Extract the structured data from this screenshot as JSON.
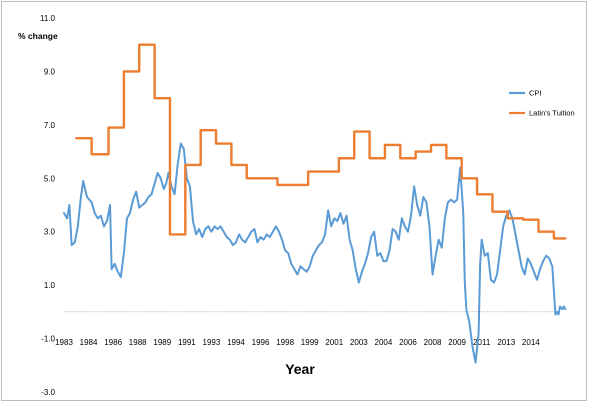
{
  "chart_data": {
    "type": "line",
    "title": "",
    "xlabel": "Year",
    "ylabel": "% change",
    "xlim": [
      1983.0,
      2015.3
    ],
    "ylim": [
      -3.0,
      11.0
    ],
    "y_ticks": [
      "11.0",
      "9.0",
      "7.0",
      "5.0",
      "3.0",
      "1.0",
      "-1.0",
      "-3.0"
    ],
    "y_tick_values": [
      11,
      9,
      7,
      5,
      3,
      1,
      -1,
      -3
    ],
    "x_ticks": [
      "1983",
      "1984",
      "1986",
      "1988",
      "1989",
      "1991",
      "1993",
      "1994",
      "1996",
      "1998",
      "1999",
      "2001",
      "2003",
      "2004",
      "2006",
      "2008",
      "2009",
      "2011",
      "2013",
      "2014"
    ],
    "x_tick_values": [
      1983,
      1984.6,
      1986.2,
      1987.8,
      1989.4,
      1991.0,
      1992.6,
      1994.2,
      1995.8,
      1997.4,
      1999.0,
      2000.6,
      2002.2,
      2003.8,
      2005.4,
      2007.0,
      2008.6,
      2010.2,
      2011.8,
      2013.4
    ],
    "zero_line": true,
    "legend_position": "right",
    "series": [
      {
        "name": "CPI",
        "color": "#5b9bd5",
        "points": [
          [
            1983.0,
            3.7
          ],
          [
            1983.2,
            3.5
          ],
          [
            1983.35,
            4.0
          ],
          [
            1983.5,
            2.5
          ],
          [
            1983.7,
            2.6
          ],
          [
            1983.9,
            3.2
          ],
          [
            1984.1,
            4.3
          ],
          [
            1984.25,
            4.9
          ],
          [
            1984.5,
            4.3
          ],
          [
            1984.8,
            4.1
          ],
          [
            1985.0,
            3.7
          ],
          [
            1985.2,
            3.5
          ],
          [
            1985.4,
            3.6
          ],
          [
            1985.6,
            3.2
          ],
          [
            1985.8,
            3.4
          ],
          [
            1986.0,
            4.0
          ],
          [
            1986.1,
            1.6
          ],
          [
            1986.3,
            1.8
          ],
          [
            1986.5,
            1.5
          ],
          [
            1986.7,
            1.3
          ],
          [
            1986.9,
            2.2
          ],
          [
            1987.1,
            3.5
          ],
          [
            1987.3,
            3.7
          ],
          [
            1987.5,
            4.2
          ],
          [
            1987.7,
            4.5
          ],
          [
            1987.9,
            3.9
          ],
          [
            1988.1,
            4.0
          ],
          [
            1988.3,
            4.1
          ],
          [
            1988.5,
            4.3
          ],
          [
            1988.7,
            4.4
          ],
          [
            1988.9,
            4.8
          ],
          [
            1989.1,
            5.2
          ],
          [
            1989.3,
            5.0
          ],
          [
            1989.5,
            4.6
          ],
          [
            1989.65,
            4.8
          ],
          [
            1989.8,
            5.2
          ],
          [
            1990.0,
            4.7
          ],
          [
            1990.2,
            4.4
          ],
          [
            1990.4,
            5.5
          ],
          [
            1990.6,
            6.3
          ],
          [
            1990.8,
            6.1
          ],
          [
            1991.0,
            5.0
          ],
          [
            1991.2,
            4.7
          ],
          [
            1991.4,
            3.4
          ],
          [
            1991.6,
            2.9
          ],
          [
            1991.8,
            3.1
          ],
          [
            1992.0,
            2.8
          ],
          [
            1992.2,
            3.1
          ],
          [
            1992.4,
            3.2
          ],
          [
            1992.6,
            3.0
          ],
          [
            1992.8,
            3.2
          ],
          [
            1993.0,
            3.1
          ],
          [
            1993.2,
            3.2
          ],
          [
            1993.4,
            3.0
          ],
          [
            1993.6,
            2.8
          ],
          [
            1993.8,
            2.7
          ],
          [
            1994.0,
            2.5
          ],
          [
            1994.2,
            2.6
          ],
          [
            1994.4,
            2.9
          ],
          [
            1994.6,
            2.7
          ],
          [
            1994.8,
            2.6
          ],
          [
            1995.0,
            2.8
          ],
          [
            1995.2,
            3.0
          ],
          [
            1995.4,
            3.1
          ],
          [
            1995.6,
            2.6
          ],
          [
            1995.8,
            2.8
          ],
          [
            1996.0,
            2.7
          ],
          [
            1996.2,
            2.9
          ],
          [
            1996.4,
            2.8
          ],
          [
            1996.6,
            3.0
          ],
          [
            1996.8,
            3.2
          ],
          [
            1997.0,
            3.0
          ],
          [
            1997.2,
            2.7
          ],
          [
            1997.4,
            2.3
          ],
          [
            1997.6,
            2.2
          ],
          [
            1997.8,
            1.8
          ],
          [
            1998.0,
            1.6
          ],
          [
            1998.2,
            1.4
          ],
          [
            1998.4,
            1.7
          ],
          [
            1998.6,
            1.6
          ],
          [
            1998.8,
            1.5
          ],
          [
            1999.0,
            1.7
          ],
          [
            1999.2,
            2.1
          ],
          [
            1999.4,
            2.3
          ],
          [
            1999.6,
            2.5
          ],
          [
            1999.8,
            2.6
          ],
          [
            2000.0,
            2.9
          ],
          [
            2000.2,
            3.8
          ],
          [
            2000.4,
            3.2
          ],
          [
            2000.6,
            3.5
          ],
          [
            2000.8,
            3.4
          ],
          [
            2001.0,
            3.7
          ],
          [
            2001.2,
            3.3
          ],
          [
            2001.4,
            3.6
          ],
          [
            2001.6,
            2.7
          ],
          [
            2001.8,
            2.3
          ],
          [
            2002.0,
            1.6
          ],
          [
            2002.2,
            1.1
          ],
          [
            2002.4,
            1.5
          ],
          [
            2002.6,
            1.8
          ],
          [
            2002.8,
            2.2
          ],
          [
            2003.0,
            2.8
          ],
          [
            2003.2,
            3.0
          ],
          [
            2003.4,
            2.1
          ],
          [
            2003.6,
            2.2
          ],
          [
            2003.8,
            1.9
          ],
          [
            2004.0,
            1.9
          ],
          [
            2004.2,
            2.3
          ],
          [
            2004.4,
            3.1
          ],
          [
            2004.6,
            3.0
          ],
          [
            2004.8,
            2.7
          ],
          [
            2005.0,
            3.5
          ],
          [
            2005.2,
            3.2
          ],
          [
            2005.4,
            3.0
          ],
          [
            2005.6,
            3.6
          ],
          [
            2005.8,
            4.7
          ],
          [
            2006.0,
            4.0
          ],
          [
            2006.2,
            3.6
          ],
          [
            2006.4,
            4.3
          ],
          [
            2006.6,
            4.1
          ],
          [
            2006.8,
            3.2
          ],
          [
            2007.0,
            1.4
          ],
          [
            2007.2,
            2.1
          ],
          [
            2007.4,
            2.7
          ],
          [
            2007.6,
            2.4
          ],
          [
            2007.8,
            3.5
          ],
          [
            2008.0,
            4.1
          ],
          [
            2008.2,
            4.2
          ],
          [
            2008.4,
            4.1
          ],
          [
            2008.6,
            4.2
          ],
          [
            2008.8,
            5.4
          ],
          [
            2009.0,
            3.7
          ],
          [
            2009.1,
            1.1
          ],
          [
            2009.2,
            0.1
          ],
          [
            2009.4,
            -0.4
          ],
          [
            2009.6,
            -1.3
          ],
          [
            2009.8,
            -1.9
          ],
          [
            2010.0,
            -0.8
          ],
          [
            2010.1,
            1.8
          ],
          [
            2010.2,
            2.7
          ],
          [
            2010.4,
            2.1
          ],
          [
            2010.6,
            2.2
          ],
          [
            2010.8,
            1.2
          ],
          [
            2011.0,
            1.1
          ],
          [
            2011.2,
            1.4
          ],
          [
            2011.4,
            2.3
          ],
          [
            2011.6,
            3.2
          ],
          [
            2011.8,
            3.6
          ],
          [
            2012.0,
            3.8
          ],
          [
            2012.2,
            3.5
          ],
          [
            2012.4,
            2.9
          ],
          [
            2012.6,
            2.3
          ],
          [
            2012.8,
            1.7
          ],
          [
            2013.0,
            1.4
          ],
          [
            2013.2,
            2.0
          ],
          [
            2013.4,
            1.8
          ],
          [
            2013.6,
            1.5
          ],
          [
            2013.8,
            1.2
          ],
          [
            2014.0,
            1.6
          ],
          [
            2014.2,
            1.9
          ],
          [
            2014.4,
            2.1
          ],
          [
            2014.6,
            2.0
          ],
          [
            2014.8,
            1.7
          ],
          [
            2015.0,
            -0.1
          ],
          [
            2015.1,
            0.0
          ],
          [
            2015.2,
            -0.1
          ],
          [
            2015.3,
            0.2
          ],
          [
            2015.45,
            0.1
          ],
          [
            2015.55,
            0.2
          ],
          [
            2015.65,
            0.1
          ]
        ]
      },
      {
        "name": "Latin's Tuition",
        "color": "#ed7d31",
        "points": [
          [
            1983.8,
            6.5
          ],
          [
            1984.8,
            6.5
          ],
          [
            1984.8,
            5.9
          ],
          [
            1985.9,
            5.9
          ],
          [
            1985.9,
            6.9
          ],
          [
            1986.9,
            6.9
          ],
          [
            1986.9,
            9.0
          ],
          [
            1987.9,
            9.0
          ],
          [
            1987.9,
            10.0
          ],
          [
            1988.9,
            10.0
          ],
          [
            1988.9,
            8.0
          ],
          [
            1989.9,
            8.0
          ],
          [
            1989.9,
            2.9
          ],
          [
            1990.9,
            2.9
          ],
          [
            1990.9,
            5.5
          ],
          [
            1991.9,
            5.5
          ],
          [
            1991.9,
            6.8
          ],
          [
            1992.9,
            6.8
          ],
          [
            1992.9,
            6.3
          ],
          [
            1993.9,
            6.3
          ],
          [
            1993.9,
            5.5
          ],
          [
            1994.9,
            5.5
          ],
          [
            1994.9,
            5.0
          ],
          [
            1996.9,
            5.0
          ],
          [
            1996.9,
            4.75
          ],
          [
            1998.9,
            4.75
          ],
          [
            1998.9,
            5.25
          ],
          [
            2000.9,
            5.25
          ],
          [
            2000.9,
            5.75
          ],
          [
            2001.9,
            5.75
          ],
          [
            2001.9,
            6.75
          ],
          [
            2002.9,
            6.75
          ],
          [
            2002.9,
            5.75
          ],
          [
            2003.9,
            5.75
          ],
          [
            2003.9,
            6.25
          ],
          [
            2004.9,
            6.25
          ],
          [
            2004.9,
            5.75
          ],
          [
            2005.9,
            5.75
          ],
          [
            2005.9,
            6.0
          ],
          [
            2006.9,
            6.0
          ],
          [
            2006.9,
            6.25
          ],
          [
            2007.9,
            6.25
          ],
          [
            2007.9,
            5.75
          ],
          [
            2008.9,
            5.75
          ],
          [
            2008.9,
            5.0
          ],
          [
            2009.9,
            5.0
          ],
          [
            2009.9,
            4.4
          ],
          [
            2010.9,
            4.4
          ],
          [
            2010.9,
            3.75
          ],
          [
            2011.9,
            3.75
          ],
          [
            2011.9,
            3.5
          ],
          [
            2012.9,
            3.5
          ],
          [
            2012.9,
            3.45
          ],
          [
            2013.9,
            3.45
          ],
          [
            2013.9,
            3.0
          ],
          [
            2014.9,
            3.0
          ],
          [
            2014.9,
            2.75
          ],
          [
            2015.65,
            2.75
          ]
        ]
      }
    ]
  }
}
